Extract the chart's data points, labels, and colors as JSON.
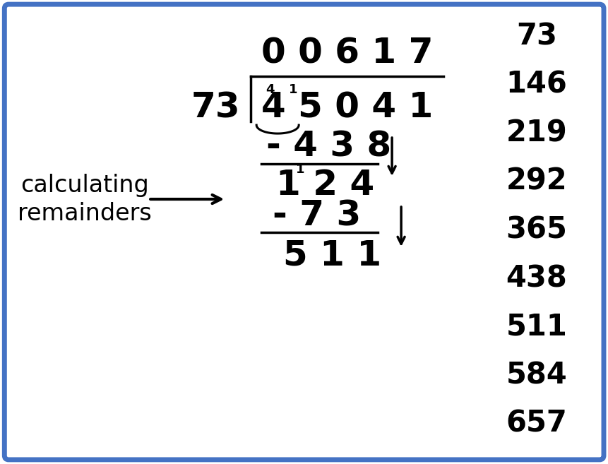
{
  "bg_color": "#ffffff",
  "border_color": "#4472C4",
  "border_linewidth": 5,
  "text_color": "#000000",
  "multiples": [
    "73",
    "146",
    "219",
    "292",
    "365",
    "438",
    "511",
    "584",
    "657"
  ],
  "quotient": "0 0 6 1 7",
  "divisor": "73",
  "dividend": "4 5 0 4 1",
  "subtraction1": "- 4 3 8",
  "remainder1": "1 2 4",
  "subtraction2": "- 7 3",
  "remainder2": "5 1 1",
  "label_line1": "calculating",
  "label_line2": "remainders",
  "font_size_main": 36,
  "font_size_multiples": 30,
  "font_size_label": 24,
  "font_size_small": 13
}
